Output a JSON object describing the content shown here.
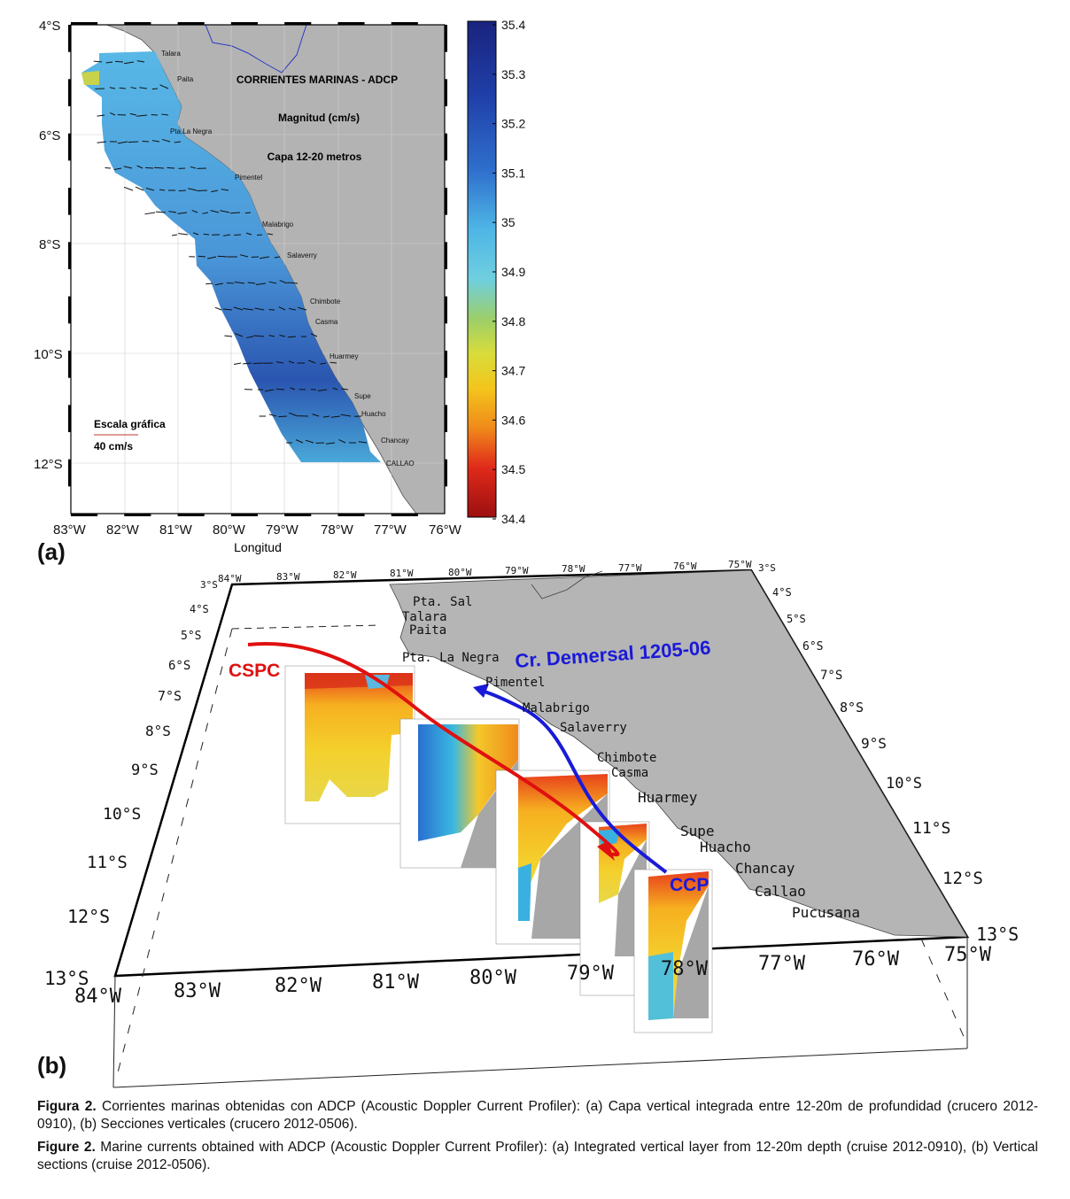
{
  "panel_a": {
    "label": "(a)",
    "title": "CORRIENTES MARINAS - ADCP",
    "subtitle": "Magnitud (cm/s)",
    "layer": "Capa 12-20 metros",
    "xlabel": "Longitud",
    "lat_ticks": [
      "4°S",
      "6°S",
      "8°S",
      "10°S",
      "12°S"
    ],
    "lon_ticks": [
      "83°W",
      "82°W",
      "81°W",
      "80°W",
      "79°W",
      "78°W",
      "77°W",
      "76°W"
    ],
    "colorbar_ticks": [
      "35.4",
      "35.3",
      "35.2",
      "35.1",
      "35",
      "34.9",
      "34.8",
      "34.7",
      "34.6",
      "34.5",
      "34.4"
    ],
    "scale_title": "Escala gráfica",
    "scale_value": "40 cm/s",
    "places": [
      "Talara",
      "Paita",
      "Pta.La Negra",
      "Pimentel",
      "Malabrigo",
      "Salaverry",
      "Chimbote",
      "Casma",
      "Huarmey",
      "Supe",
      "Huacho",
      "Chancay",
      "CALLAO"
    ],
    "colors": {
      "land": "#b3b3b3",
      "ocean": "#ffffff",
      "arrows": "#111111"
    }
  },
  "panel_b": {
    "label": "(b)",
    "cruise": "Cr. Demersal 1205-06",
    "cspc": "CSPC",
    "ccp": "CCP",
    "top_lon_ticks": [
      "84°W",
      "83°W",
      "82°W",
      "81°W",
      "80°W",
      "79°W",
      "78°W",
      "77°W",
      "76°W",
      "75°W"
    ],
    "bottom_lon_ticks": [
      "84°W",
      "83°W",
      "82°W",
      "81°W",
      "80°W",
      "79°W",
      "78°W",
      "77°W",
      "76°W",
      "75°W"
    ],
    "left_lat_ticks": [
      "3°S",
      "4°S",
      "5°S",
      "6°S",
      "7°S",
      "8°S",
      "9°S",
      "10°S",
      "11°S",
      "12°S",
      "13°S"
    ],
    "right_lat_ticks": [
      "3°S",
      "4°S",
      "5°S",
      "6°S",
      "7°S",
      "8°S",
      "9°S",
      "10°S",
      "11°S",
      "12°S",
      "13°S"
    ],
    "places": [
      "Pta. Sal",
      "Talara",
      "Paita",
      "Pta. La Negra",
      "Pimentel",
      "Malabrigo",
      "Salaverry",
      "Chimbote",
      "Casma",
      "Huarmey",
      "Supe",
      "Huacho",
      "Chancay",
      "Callao",
      "Pucusana"
    ],
    "colors": {
      "cspc": "#e01010",
      "ccp": "#1a1ad8",
      "land": "#b5b5b5"
    }
  },
  "caption": {
    "es_label": "Figura 2.",
    "es_text": "Corrientes marinas obtenidas con ADCP (Acoustic Doppler Current Profiler): (a) Capa vertical integrada entre 12-20m de profundidad (crucero 2012-0910), (b) Secciones verticales (crucero 2012-0506).",
    "en_label": "Figure 2.",
    "en_text": "Marine currents obtained with ADCP (Acoustic Doppler Current Profiler): (a) Integrated vertical layer from 12-20m depth (cruise 2012-0910), (b) Vertical sections (cruise 2012-0506)."
  }
}
